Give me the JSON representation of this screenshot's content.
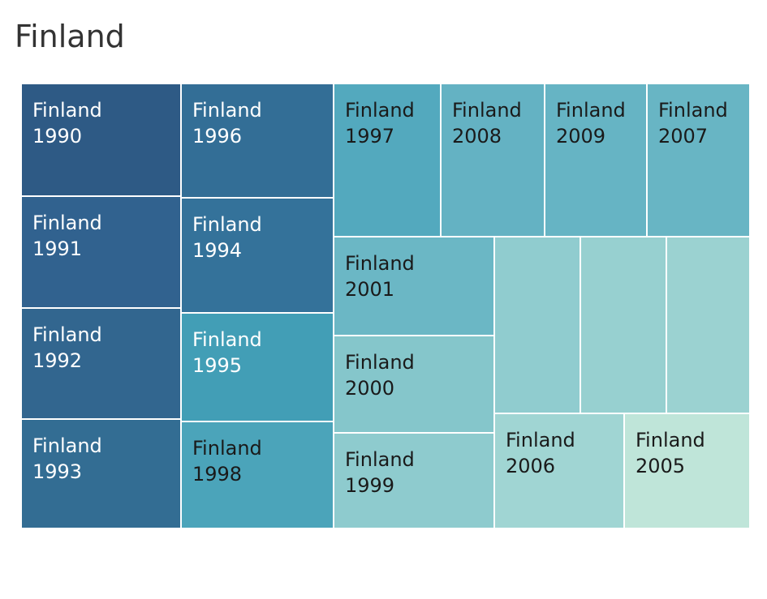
{
  "title": "Finland",
  "chart_data": {
    "type": "treemap",
    "title": "Finland",
    "colors": {
      "dark": "#2d5c85",
      "mid": "#4ba3b9",
      "light": "#bfe5d9"
    },
    "cells": [
      {
        "label": "Finland",
        "year": "1990",
        "color": "#2e5a85"
      },
      {
        "label": "Finland",
        "year": "1991",
        "color": "#31628f"
      },
      {
        "label": "Finland",
        "year": "1992",
        "color": "#32668f"
      },
      {
        "label": "Finland",
        "year": "1993",
        "color": "#336d93"
      },
      {
        "label": "Finland",
        "year": "1996",
        "color": "#336e96"
      },
      {
        "label": "Finland",
        "year": "1994",
        "color": "#34729a"
      },
      {
        "label": "Finland",
        "year": "1995",
        "color": "#429eb6"
      },
      {
        "label": "Finland",
        "year": "1998",
        "color": "#4ba4ba"
      },
      {
        "label": "Finland",
        "year": "1997",
        "color": "#53a9be"
      },
      {
        "label": "Finland",
        "year": "2008",
        "color": "#64b2c3"
      },
      {
        "label": "Finland",
        "year": "2009",
        "color": "#66b4c4"
      },
      {
        "label": "Finland",
        "year": "2007",
        "color": "#68b5c4"
      },
      {
        "label": "Finland",
        "year": "2001",
        "color": "#6bb7c5"
      },
      {
        "label": "Finland",
        "year": "2000",
        "color": "#85c6cb"
      },
      {
        "label": "Finland",
        "year": "1999",
        "color": "#8ecbce"
      },
      {
        "label": "",
        "year": "",
        "color": "#90cccf"
      },
      {
        "label": "",
        "year": "",
        "color": "#97d0d0"
      },
      {
        "label": "",
        "year": "",
        "color": "#9bd2d1"
      },
      {
        "label": "Finland",
        "year": "2006",
        "color": "#a0d5d3"
      },
      {
        "label": "Finland",
        "year": "2005",
        "color": "#bfe5d9"
      }
    ]
  }
}
